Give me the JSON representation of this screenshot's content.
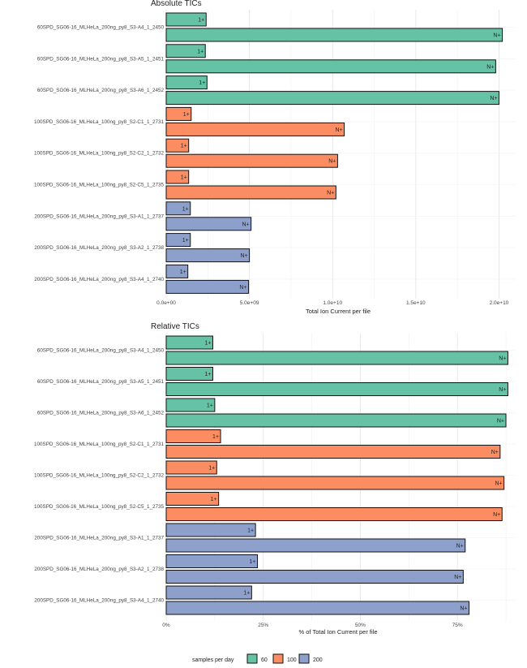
{
  "legend": {
    "title": "samples per day",
    "items": [
      {
        "label": "60",
        "color": "#66c2a5"
      },
      {
        "label": "100",
        "color": "#fc8d62"
      },
      {
        "label": "200",
        "color": "#8da0cb"
      }
    ]
  },
  "chart_data": [
    {
      "type": "bar",
      "orientation": "horizontal",
      "title": "Absolute TICs",
      "xlabel": "Total Ion Current per file",
      "ylabel": "",
      "xlim": [
        0,
        21000000000
      ],
      "xticks": [
        0,
        5000000000,
        10000000000,
        15000000000,
        20000000000
      ],
      "xtick_labels": [
        "0.0e+00",
        "5.0e+09",
        "1.0e+10",
        "1.5e+10",
        "2.0e+10"
      ],
      "grid": true,
      "categories": [
        {
          "label": "60SPD_SG06-16_MLHeLa_200ng_py8_S3-A4_1_2450",
          "group": "60",
          "bars": [
            {
              "label": "1+",
              "value": 2400000000
            },
            {
              "label": "N+",
              "value": 20200000000
            }
          ]
        },
        {
          "label": "60SPD_SG06-16_MLHeLa_200ng_py8_S3-A5_1_2451",
          "group": "60",
          "bars": [
            {
              "label": "1+",
              "value": 2350000000
            },
            {
              "label": "N+",
              "value": 19800000000
            }
          ]
        },
        {
          "label": "60SPD_SG06-16_MLHeLa_200ng_py8_S3-A6_1_2452",
          "group": "60",
          "bars": [
            {
              "label": "1+",
              "value": 2450000000
            },
            {
              "label": "N+",
              "value": 20000000000
            }
          ]
        },
        {
          "label": "100SPD_SG06-16_MLHeLa_100ng_py8_S2-C1_1_2731",
          "group": "100",
          "bars": [
            {
              "label": "1+",
              "value": 1500000000
            },
            {
              "label": "N+",
              "value": 10700000000
            }
          ]
        },
        {
          "label": "100SPD_SG06-16_MLHeLa_100ng_py8_S2-C2_1_2732",
          "group": "100",
          "bars": [
            {
              "label": "1+",
              "value": 1350000000
            },
            {
              "label": "N+",
              "value": 10300000000
            }
          ]
        },
        {
          "label": "100SPD_SG06-16_MLHeLa_100ng_py8_S2-C5_1_2735",
          "group": "100",
          "bars": [
            {
              "label": "1+",
              "value": 1350000000
            },
            {
              "label": "N+",
              "value": 10200000000
            }
          ]
        },
        {
          "label": "200SPD_SG06-16_MLHeLa_200ng_py8_S3-A1_1_2737",
          "group": "200",
          "bars": [
            {
              "label": "1+",
              "value": 1450000000
            },
            {
              "label": "N+",
              "value": 5100000000
            }
          ]
        },
        {
          "label": "200SPD_SG06-16_MLHeLa_200ng_py8_S3-A2_1_2738",
          "group": "200",
          "bars": [
            {
              "label": "1+",
              "value": 1450000000
            },
            {
              "label": "N+",
              "value": 5000000000
            }
          ]
        },
        {
          "label": "200SPD_SG06-16_MLHeLa_200ng_py8_S3-A4_1_2740",
          "group": "200",
          "bars": [
            {
              "label": "1+",
              "value": 1300000000
            },
            {
              "label": "N+",
              "value": 4950000000
            }
          ]
        }
      ]
    },
    {
      "type": "bar",
      "orientation": "horizontal",
      "title": "Relative TICs",
      "xlabel": "% of Total Ion Current per file",
      "ylabel": "",
      "xlim": [
        0,
        90
      ],
      "xticks": [
        0,
        25,
        50,
        75
      ],
      "xtick_labels": [
        "0%",
        "25%",
        "50%",
        "75%"
      ],
      "grid": true,
      "categories": [
        {
          "label": "60SPD_SG06-16_MLHeLa_200ng_py8_S3-A4_1_2450",
          "group": "60",
          "bars": [
            {
              "label": "1+",
              "value": 12
            },
            {
              "label": "N+",
              "value": 88
            }
          ]
        },
        {
          "label": "60SPD_SG06-16_MLHeLa_200ng_py8_S3-A5_1_2451",
          "group": "60",
          "bars": [
            {
              "label": "1+",
              "value": 12
            },
            {
              "label": "N+",
              "value": 88
            }
          ]
        },
        {
          "label": "60SPD_SG06-16_MLHeLa_200ng_py8_S3-A6_1_2452",
          "group": "60",
          "bars": [
            {
              "label": "1+",
              "value": 12.5
            },
            {
              "label": "N+",
              "value": 87.5
            }
          ]
        },
        {
          "label": "100SPD_SG06-16_MLHeLa_100ng_py8_S2-C1_1_2731",
          "group": "100",
          "bars": [
            {
              "label": "1+",
              "value": 14
            },
            {
              "label": "N+",
              "value": 86
            }
          ]
        },
        {
          "label": "100SPD_SG06-16_MLHeLa_100ng_py8_S2-C2_1_2732",
          "group": "100",
          "bars": [
            {
              "label": "1+",
              "value": 13
            },
            {
              "label": "N+",
              "value": 87
            }
          ]
        },
        {
          "label": "100SPD_SG06-16_MLHeLa_100ng_py8_S2-C5_1_2735",
          "group": "100",
          "bars": [
            {
              "label": "1+",
              "value": 13.5
            },
            {
              "label": "N+",
              "value": 86.5
            }
          ]
        },
        {
          "label": "200SPD_SG06-16_MLHeLa_200ng_py8_S3-A1_1_2737",
          "group": "200",
          "bars": [
            {
              "label": "1+",
              "value": 23
            },
            {
              "label": "N+",
              "value": 77
            }
          ]
        },
        {
          "label": "200SPD_SG06-16_MLHeLa_200ng_py8_S3-A2_1_2738",
          "group": "200",
          "bars": [
            {
              "label": "1+",
              "value": 23.5
            },
            {
              "label": "N+",
              "value": 76.5
            }
          ]
        },
        {
          "label": "200SPD_SG06-16_MLHeLa_200ng_py8_S3-A4_1_2740",
          "group": "200",
          "bars": [
            {
              "label": "1+",
              "value": 22
            },
            {
              "label": "N+",
              "value": 78
            }
          ]
        }
      ]
    }
  ]
}
